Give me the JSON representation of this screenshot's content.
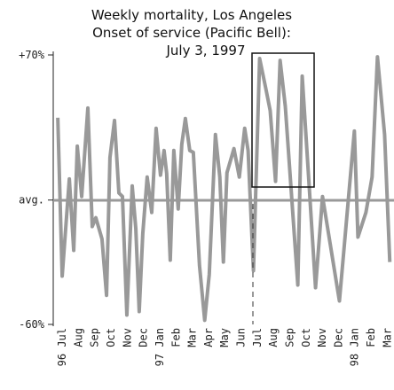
{
  "chart_data": {
    "type": "line",
    "title": [
      "Weekly mortality, Los Angeles",
      "Onset of service (Pacific Bell):",
      "July 3, 1997"
    ],
    "x": [
      -0.27,
      0,
      0.44,
      0.71,
      0.93,
      1.2,
      1.58,
      1.85,
      2.07,
      2.45,
      2.73,
      2.94,
      3.22,
      3.49,
      3.71,
      3.98,
      4.31,
      4.53,
      4.74,
      4.96,
      5.23,
      5.51,
      5.78,
      6.05,
      6.27,
      6.43,
      6.65,
      6.87,
      7.14,
      7.36,
      7.58,
      7.85,
      8.07,
      8.45,
      8.77,
      9.05,
      9.43,
      9.7,
      9.92,
      10.14,
      10.57,
      10.9,
      11.23,
      11.44,
      11.77,
      12.15,
      12.53,
      12.8,
      13.13,
      13.41,
      13.73,
      14.5,
      14.77,
      15.15,
      15.59,
      16.02,
      17.06,
      17.98,
      18.2,
      18.69,
      19.07,
      19.4,
      19.84,
      20.16
    ],
    "series": [
      {
        "color": "#999999",
        "values": [
          39.7,
          -36.7,
          10.2,
          -24.3,
          26,
          1.7,
          44.4,
          -12.8,
          -8.5,
          -18.8,
          -46,
          20.5,
          38.4,
          3.4,
          1.7,
          -55.5,
          6.8,
          -13.7,
          -53.8,
          -16.2,
          11.1,
          -6,
          34.6,
          12,
          23.9,
          12.8,
          -29,
          23.9,
          -4.3,
          26.9,
          39.3,
          23.9,
          23,
          -31.6,
          -58,
          -35.9,
          31.6,
          11.1,
          -29.9,
          13.2,
          24.8,
          11.1,
          34.6,
          23.9,
          -34.1,
          68.3,
          53.8,
          43.1,
          9,
          67.4,
          45.2,
          -41,
          59.8,
          12.8,
          -42.3,
          1.7,
          -48.7,
          33.3,
          -17.9,
          -6,
          11.1,
          69.1,
          31.6,
          -29.9
        ]
      }
    ],
    "xlim": [
      -0.55,
      20.2
    ],
    "ylim": [
      -60,
      70
    ],
    "yticks": [
      {
        "value": 70,
        "label": "+70%"
      },
      {
        "value": 0,
        "label": "avg."
      },
      {
        "value": -60,
        "label": "-60%"
      }
    ],
    "xticks": [
      {
        "value": 0,
        "label": "96 Jul"
      },
      {
        "value": 1,
        "label": "Aug"
      },
      {
        "value": 2,
        "label": "Sep"
      },
      {
        "value": 3,
        "label": "Oct"
      },
      {
        "value": 4,
        "label": "Nov"
      },
      {
        "value": 5,
        "label": "Dec"
      },
      {
        "value": 6,
        "label": "97 Jan"
      },
      {
        "value": 7,
        "label": "Feb"
      },
      {
        "value": 8,
        "label": "Mar"
      },
      {
        "value": 9,
        "label": "Apr"
      },
      {
        "value": 10,
        "label": "May"
      },
      {
        "value": 11,
        "label": "Jun"
      },
      {
        "value": 12,
        "label": "Jul"
      },
      {
        "value": 13,
        "label": "Aug"
      },
      {
        "value": 14,
        "label": "Sep"
      },
      {
        "value": 15,
        "label": "Oct"
      },
      {
        "value": 16,
        "label": "Nov"
      },
      {
        "value": 17,
        "label": "Dec"
      },
      {
        "value": 18,
        "label": "98 Jan"
      },
      {
        "value": 19,
        "label": "Feb"
      },
      {
        "value": 20,
        "label": "Mar"
      }
    ]
  }
}
